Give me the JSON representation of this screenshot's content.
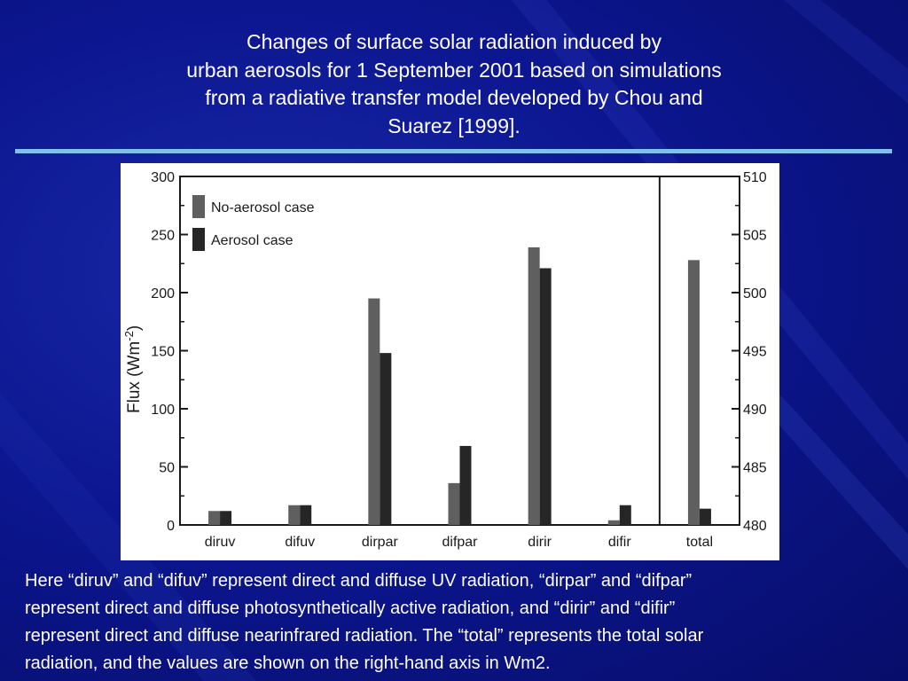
{
  "slide": {
    "title": "Changes of surface solar radiation induced by\nurban aerosols for 1 September 2001 based on simulations\nfrom a radiative transfer model developed by Chou and\nSuarez [1999].",
    "caption": "Here “diruv” and “difuv” represent direct and diffuse UV radiation, “dirpar” and “difpar”\nrepresent direct and diffuse photosynthetically active radiation, and “dirir” and “difir”\nrepresent direct and diffuse nearinfrared radiation. The “total” represents the total solar\nradiation, and the values are shown on the right-hand axis in Wm2."
  },
  "colors": {
    "no_aerosol": "#5f5f5f",
    "aerosol": "#262626",
    "axis": "#1a1a1a",
    "background_accent": "#7fc0ee"
  },
  "chart_data": {
    "type": "bar",
    "ylabel_main": "Flux (Wm",
    "ylabel_exp": "-2",
    "ylabel_close": ")",
    "categories": [
      "diruv",
      "difuv",
      "dirpar",
      "difpar",
      "dirir",
      "difir",
      "total"
    ],
    "left_axis": {
      "range": [
        0,
        300
      ],
      "ticks": [
        0,
        50,
        100,
        150,
        200,
        250,
        300
      ]
    },
    "right_axis": {
      "range": [
        480,
        510
      ],
      "ticks": [
        480,
        485,
        490,
        495,
        500,
        505,
        510
      ]
    },
    "legend_position": "top-left",
    "series": [
      {
        "name": "No-aerosol case",
        "values": [
          12,
          17,
          195,
          36,
          239,
          4,
          502.8
        ]
      },
      {
        "name": "Aerosol case",
        "values": [
          12,
          17,
          148,
          68,
          221,
          17,
          481.4
        ]
      }
    ],
    "right_axis_categories": [
      "total"
    ]
  }
}
